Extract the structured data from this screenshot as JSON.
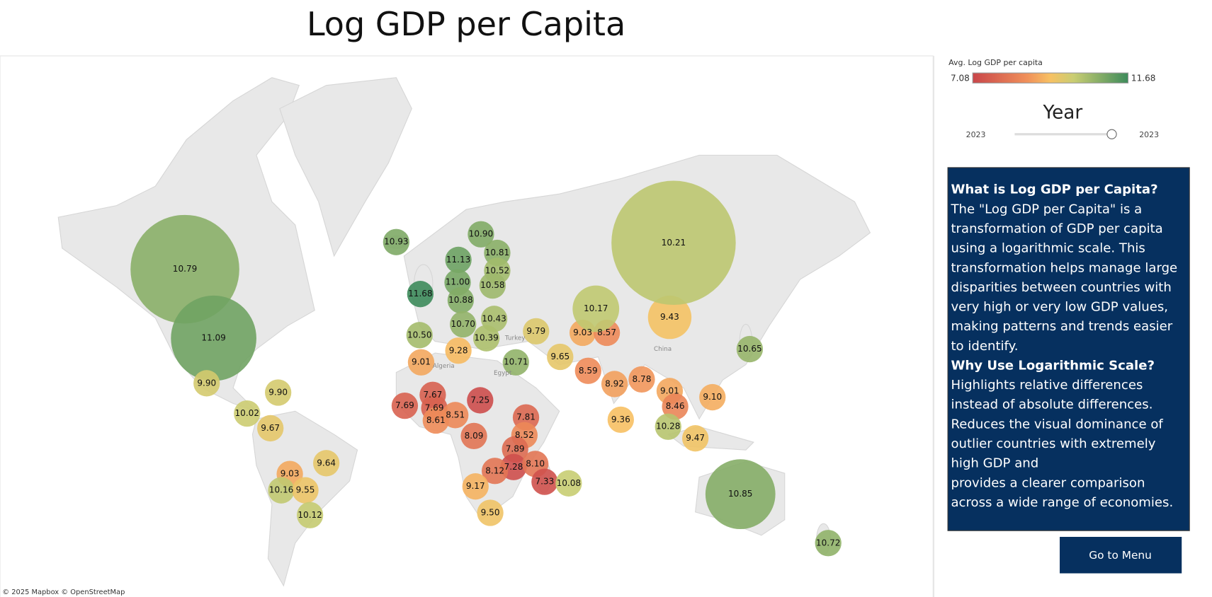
{
  "header": {
    "title": "Log GDP per Capita"
  },
  "map": {
    "attribution": "© 2025 Mapbox © OpenStreetMap",
    "place_names": [
      "Turkey",
      "Algeria",
      "Egypt",
      "China"
    ],
    "labels": [
      "10.79",
      "11.09",
      "9.90",
      "9.90",
      "10.02",
      "9.67",
      "9.64",
      "9.03",
      "10.16",
      "9.55",
      "10.12",
      "10.93",
      "11.13",
      "10.90",
      "10.81",
      "10.52",
      "11.00",
      "10.58",
      "11.68",
      "10.88",
      "10.70",
      "10.43",
      "10.39",
      "10.50",
      "9.28",
      "9.01",
      "10.71",
      "9.79",
      "9.65",
      "9.03",
      "8.57",
      "10.17",
      "9.43",
      "10.21",
      "10.65",
      "8.59",
      "8.92",
      "8.78",
      "9.01",
      "8.46",
      "9.10",
      "10.28",
      "9.47",
      "9.36",
      "10.85",
      "10.72",
      "7.67",
      "7.69",
      "7.69",
      "8.51",
      "8.61",
      "7.25",
      "7.81",
      "8.52",
      "8.09",
      "7.89",
      "7.28",
      "8.10",
      "8.12",
      "7.33",
      "10.08",
      "9.17",
      "9.50"
    ]
  },
  "legend": {
    "title": "Avg. Log GDP per capita",
    "min": 7.08,
    "max": 11.68
  },
  "filter": {
    "title": "Year",
    "min": "2023",
    "max": "2023"
  },
  "info": {
    "sections": [
      {
        "heading": "What is Log GDP per Capita?",
        "lines": [
          "The \"Log GDP per Capita\" is a",
          "transformation of GDP per capita",
          "using a logarithmic scale. This",
          "transformation helps manage large",
          "disparities between countries with",
          "very high or very low GDP values,",
          "making patterns and trends easier",
          "to identify."
        ]
      },
      {
        "heading": "Why Use Logarithmic Scale?",
        "lines": [
          "Highlights relative differences",
          "instead of absolute differences.",
          "Reduces the visual dominance of",
          "outlier countries with extremely",
          "high GDP and",
          "provides a clearer comparison",
          "across a wide range of economies."
        ]
      }
    ]
  },
  "button": {
    "label": "Go to Menu"
  }
}
